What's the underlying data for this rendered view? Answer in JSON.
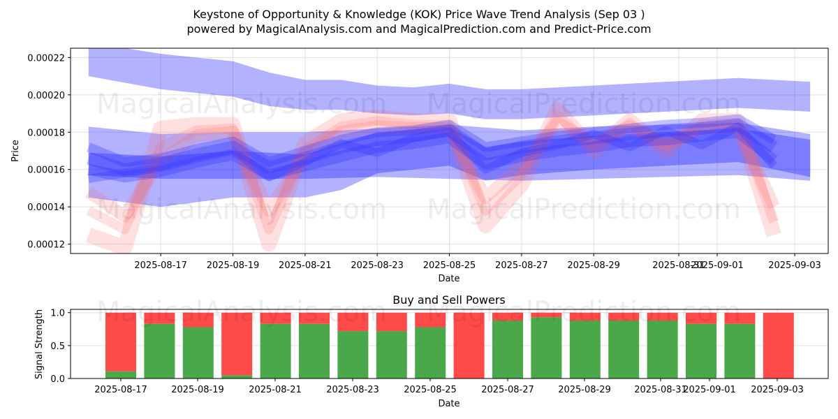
{
  "titles": {
    "line1": "Keystone of Opportunity & Knowledge (KOK) Price Wave Trend Analysis (Sep 03 )",
    "line2": "powered by MagicalAnalysis.com and MagicalPrediction.com and Predict-Price.com"
  },
  "watermarks": [
    "MagicalAnalysis.com",
    "MagicalPrediction.com"
  ],
  "chart_data": [
    {
      "type": "area",
      "title": "",
      "xlabel": "Date",
      "ylabel": "Price",
      "xlim": [
        "2025-08-14T12:00",
        "2025-09-04T12:00"
      ],
      "ylim": [
        0.000115,
        0.000225
      ],
      "grid": true,
      "x_ticks": [
        "2025-08-17",
        "2025-08-19",
        "2025-08-21",
        "2025-08-23",
        "2025-08-25",
        "2025-08-27",
        "2025-08-29",
        "2025-08-31",
        "2025-09-01",
        "2025-09-03"
      ],
      "y_ticks": [
        "0.00012",
        "0.00014",
        "0.00016",
        "0.00018",
        "0.00020",
        "0.00022"
      ],
      "blue_bands": [
        {
          "name": "upper-band",
          "x": [
            "2025-08-15",
            "2025-08-17",
            "2025-08-19",
            "2025-08-20",
            "2025-08-21",
            "2025-08-22",
            "2025-08-23",
            "2025-08-24",
            "2025-08-25",
            "2025-08-26",
            "2025-08-27",
            "2025-08-28",
            "2025-08-29",
            "2025-08-30",
            "2025-08-31",
            "2025-09-01",
            "2025-09-02",
            "2025-09-03",
            "2025-09-04"
          ],
          "upper": [
            0.000228,
            0.000222,
            0.000218,
            0.000212,
            0.000208,
            0.000208,
            0.000205,
            0.000204,
            0.000206,
            0.000203,
            0.000203,
            0.000204,
            0.000205,
            0.000206,
            0.000207,
            0.000208,
            0.000209,
            0.000208,
            0.000207
          ],
          "lower": [
            0.00021,
            0.000203,
            0.000199,
            0.000194,
            0.000192,
            0.000192,
            0.00019,
            0.000189,
            0.00019,
            0.000187,
            0.000187,
            0.000188,
            0.000189,
            0.00019,
            0.000191,
            0.000192,
            0.000193,
            0.000192,
            0.000191
          ]
        },
        {
          "name": "mid-band",
          "x": [
            "2025-08-15",
            "2025-08-17",
            "2025-08-19",
            "2025-08-21",
            "2025-08-23",
            "2025-08-25",
            "2025-08-27",
            "2025-08-29",
            "2025-08-31",
            "2025-09-02",
            "2025-09-04"
          ],
          "upper": [
            0.000183,
            0.000179,
            0.00018,
            0.00018,
            0.000182,
            0.000184,
            0.000181,
            0.000183,
            0.000184,
            0.000185,
            0.000179
          ],
          "lower": [
            0.000157,
            0.000155,
            0.000155,
            0.000155,
            0.000156,
            0.000155,
            0.000154,
            0.000155,
            0.000156,
            0.000157,
            0.000154
          ]
        },
        {
          "name": "lower-band",
          "x": [
            "2025-08-15",
            "2025-08-17",
            "2025-08-19",
            "2025-08-21",
            "2025-08-22",
            "2025-08-23",
            "2025-08-25",
            "2025-08-26",
            "2025-08-27",
            "2025-08-29",
            "2025-08-31",
            "2025-09-02",
            "2025-09-04"
          ],
          "upper": [
            0.000169,
            0.000167,
            0.00017,
            0.000168,
            0.000174,
            0.00018,
            0.000183,
            0.000172,
            0.000175,
            0.000178,
            0.00018,
            0.000182,
            0.000176
          ],
          "lower": [
            0.000145,
            0.00014,
            0.000145,
            0.000145,
            0.000149,
            0.000158,
            0.000162,
            0.000154,
            0.000157,
            0.00016,
            0.000162,
            0.000164,
            0.000156
          ]
        }
      ],
      "blue_waves": [
        {
          "x": [
            "2025-08-15",
            "2025-08-16",
            "2025-08-17",
            "2025-08-18",
            "2025-08-19",
            "2025-08-20",
            "2025-08-21",
            "2025-08-22",
            "2025-08-23",
            "2025-08-24",
            "2025-08-25",
            "2025-08-26",
            "2025-08-27",
            "2025-08-28",
            "2025-08-29",
            "2025-08-30",
            "2025-08-31",
            "2025-09-01",
            "2025-09-02",
            "2025-09-03"
          ],
          "y": [
            0.000166,
            0.00016,
            0.000163,
            0.000168,
            0.000172,
            0.000161,
            0.000166,
            0.000172,
            0.000176,
            0.000178,
            0.000181,
            0.000168,
            0.000172,
            0.000175,
            0.000177,
            0.000179,
            0.000181,
            0.000182,
            0.000184,
            0.000172
          ]
        },
        {
          "x": [
            "2025-08-15",
            "2025-08-16",
            "2025-08-17",
            "2025-08-18",
            "2025-08-19",
            "2025-08-20",
            "2025-08-21",
            "2025-08-22",
            "2025-08-23",
            "2025-08-24",
            "2025-08-25",
            "2025-08-26",
            "2025-08-27",
            "2025-08-28",
            "2025-08-29",
            "2025-08-30",
            "2025-08-31",
            "2025-09-01",
            "2025-09-02",
            "2025-09-03"
          ],
          "y": [
            0.00016,
            0.000156,
            0.000159,
            0.000164,
            0.000168,
            0.000157,
            0.000162,
            0.000167,
            0.000172,
            0.000174,
            0.000177,
            0.000163,
            0.000167,
            0.00017,
            0.000172,
            0.000175,
            0.000176,
            0.000178,
            0.00018,
            0.000165
          ]
        },
        {
          "x": [
            "2025-08-15",
            "2025-08-16",
            "2025-08-17",
            "2025-08-18",
            "2025-08-19",
            "2025-08-20",
            "2025-08-21",
            "2025-08-22",
            "2025-08-23",
            "2025-08-24",
            "2025-08-25",
            "2025-08-26",
            "2025-08-27",
            "2025-08-28",
            "2025-08-29",
            "2025-08-30",
            "2025-08-31",
            "2025-09-01",
            "2025-09-02",
            "2025-09-03"
          ],
          "y": [
            0.000172,
            0.000164,
            0.000166,
            0.000171,
            0.000175,
            0.000164,
            0.00017,
            0.000176,
            0.00018,
            0.000181,
            0.000184,
            0.000172,
            0.000175,
            0.000178,
            0.00018,
            0.000182,
            0.000184,
            0.000185,
            0.000187,
            0.000176
          ]
        },
        {
          "x": [
            "2025-08-15",
            "2025-08-16",
            "2025-08-17",
            "2025-08-18",
            "2025-08-19",
            "2025-08-20",
            "2025-08-21",
            "2025-08-22",
            "2025-08-23",
            "2025-08-24",
            "2025-08-25",
            "2025-08-26",
            "2025-08-27",
            "2025-08-28",
            "2025-08-29",
            "2025-08-30",
            "2025-08-31",
            "2025-09-01",
            "2025-09-02",
            "2025-09-03"
          ],
          "y": [
            0.000155,
            0.000158,
            0.000161,
            0.000166,
            0.00017,
            0.000156,
            0.000164,
            0.000174,
            0.000169,
            0.000177,
            0.00018,
            0.00016,
            0.000169,
            0.000173,
            0.000179,
            0.000172,
            0.000181,
            0.000173,
            0.000183,
            0.000162
          ]
        }
      ],
      "red_waves": [
        {
          "x": [
            "2025-08-15",
            "2025-08-16",
            "2025-08-17",
            "2025-08-18",
            "2025-08-19",
            "2025-08-20",
            "2025-08-21",
            "2025-08-22",
            "2025-08-23",
            "2025-08-24",
            "2025-08-25",
            "2025-08-26",
            "2025-08-27",
            "2025-08-28",
            "2025-08-29",
            "2025-08-30",
            "2025-08-31",
            "2025-09-01",
            "2025-09-02",
            "2025-09-03"
          ],
          "y": [
            0.000125,
            0.000118,
            0.000182,
            0.000184,
            0.000184,
            0.00012,
            0.000174,
            0.000186,
            0.000188,
            0.000186,
            0.000186,
            0.00013,
            0.000152,
            0.000192,
            0.00017,
            0.000186,
            0.00017,
            0.000186,
            0.000186,
            0.000125
          ]
        },
        {
          "x": [
            "2025-08-15",
            "2025-08-16",
            "2025-08-17",
            "2025-08-18",
            "2025-08-19",
            "2025-08-20",
            "2025-08-21",
            "2025-08-22",
            "2025-08-23",
            "2025-08-24",
            "2025-08-25",
            "2025-08-26",
            "2025-08-27",
            "2025-08-28",
            "2025-08-29",
            "2025-08-30",
            "2025-08-31",
            "2025-09-01",
            "2025-09-02",
            "2025-09-03"
          ],
          "y": [
            0.000148,
            0.000135,
            0.000165,
            0.000178,
            0.00018,
            0.000138,
            0.000168,
            0.00018,
            0.000183,
            0.000182,
            0.000182,
            0.000145,
            0.000162,
            0.000185,
            0.000174,
            0.000183,
            0.000174,
            0.000182,
            0.000183,
            0.00014
          ]
        },
        {
          "x": [
            "2025-08-15",
            "2025-08-16",
            "2025-08-17",
            "2025-08-18",
            "2025-08-19",
            "2025-08-20",
            "2025-08-21",
            "2025-08-22",
            "2025-08-23",
            "2025-08-24",
            "2025-08-25",
            "2025-08-26",
            "2025-08-27",
            "2025-08-28",
            "2025-08-29",
            "2025-08-30",
            "2025-08-31",
            "2025-09-01",
            "2025-09-02",
            "2025-09-03"
          ],
          "y": [
            0.000138,
            0.000128,
            0.000172,
            0.000181,
            0.000182,
            0.000128,
            0.000171,
            0.000183,
            0.000186,
            0.000184,
            0.000184,
            0.000138,
            0.000157,
            0.000189,
            0.000172,
            0.000185,
            0.000172,
            0.000184,
            0.000185,
            0.000132
          ]
        }
      ]
    },
    {
      "type": "bar",
      "title": "Buy and Sell Powers",
      "xlabel": "Date",
      "ylabel": "Signal Strength",
      "xlim": [
        "2025-08-14T12:00",
        "2025-09-04T12:00"
      ],
      "ylim": [
        0,
        1.05
      ],
      "grid": true,
      "x_ticks": [
        "2025-08-17",
        "2025-08-19",
        "2025-08-21",
        "2025-08-23",
        "2025-08-25",
        "2025-08-27",
        "2025-08-29",
        "2025-08-31",
        "2025-09-01",
        "2025-09-03"
      ],
      "y_ticks": [
        "0.0",
        "0.5",
        "1.0"
      ],
      "categories": [
        "2025-08-17",
        "2025-08-18",
        "2025-08-19",
        "2025-08-20",
        "2025-08-21",
        "2025-08-22",
        "2025-08-23",
        "2025-08-24",
        "2025-08-25",
        "2025-08-26",
        "2025-08-27",
        "2025-08-28",
        "2025-08-29",
        "2025-08-30",
        "2025-08-31",
        "2025-09-01",
        "2025-09-02",
        "2025-09-03"
      ],
      "series": [
        {
          "name": "Buy",
          "color": "#4aa84a",
          "values": [
            0.11,
            0.83,
            0.78,
            0.05,
            0.83,
            0.83,
            0.72,
            0.72,
            0.78,
            0.0,
            0.88,
            0.93,
            0.88,
            0.88,
            0.88,
            0.83,
            0.83,
            0.0
          ]
        },
        {
          "name": "Sell",
          "color": "#ff4a4a",
          "values": [
            0.89,
            0.17,
            0.22,
            0.95,
            0.17,
            0.17,
            0.28,
            0.28,
            0.22,
            1.0,
            0.12,
            0.07,
            0.12,
            0.12,
            0.12,
            0.17,
            0.17,
            1.0
          ]
        }
      ]
    }
  ],
  "colors": {
    "band": "#0000ff",
    "wave_blue": "#3333ff",
    "wave_red": "#ff6666",
    "grid": "#e0e0e0"
  }
}
